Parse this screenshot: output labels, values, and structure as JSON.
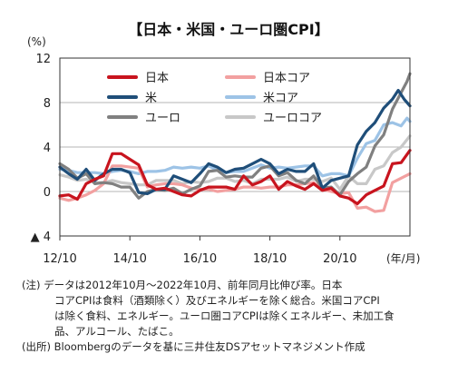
{
  "chart_data": {
    "type": "line",
    "title": "【日本・米国・ユーロ圏CPI】",
    "y_unit": "(%)",
    "x_unit": "(年/月)",
    "ylim": [
      -4,
      12
    ],
    "y_ticks": [
      12,
      8,
      4,
      0,
      -4
    ],
    "y_tick_labels": [
      "12",
      "8",
      "4",
      "0",
      "▲ 4"
    ],
    "x_ticks": [
      "2012-10",
      "2014-10",
      "2016-10",
      "2018-10",
      "2020-10"
    ],
    "x_tick_labels": [
      "12/10",
      "14/10",
      "16/10",
      "18/10",
      "20/10"
    ],
    "x_range": [
      "2012-10",
      "2022-10"
    ],
    "grid": "horizontal",
    "legend": "inside-top",
    "series": [
      {
        "name": "日本",
        "color": "#c8141e",
        "points": [
          [
            "2012-10",
            -0.4
          ],
          [
            "2013-01",
            -0.3
          ],
          [
            "2013-04",
            -0.7
          ],
          [
            "2013-07",
            0.7
          ],
          [
            "2013-10",
            1.1
          ],
          [
            "2014-01",
            1.4
          ],
          [
            "2014-04",
            3.4
          ],
          [
            "2014-07",
            3.4
          ],
          [
            "2014-10",
            2.9
          ],
          [
            "2015-01",
            2.4
          ],
          [
            "2015-04",
            0.6
          ],
          [
            "2015-07",
            0.2
          ],
          [
            "2015-10",
            0.3
          ],
          [
            "2016-01",
            0.0
          ],
          [
            "2016-04",
            -0.3
          ],
          [
            "2016-07",
            -0.4
          ],
          [
            "2016-10",
            0.1
          ],
          [
            "2017-01",
            0.4
          ],
          [
            "2017-04",
            0.4
          ],
          [
            "2017-07",
            0.4
          ],
          [
            "2017-10",
            0.2
          ],
          [
            "2018-01",
            1.4
          ],
          [
            "2018-04",
            0.6
          ],
          [
            "2018-07",
            0.9
          ],
          [
            "2018-10",
            1.4
          ],
          [
            "2019-01",
            0.2
          ],
          [
            "2019-04",
            0.9
          ],
          [
            "2019-07",
            0.5
          ],
          [
            "2019-10",
            0.2
          ],
          [
            "2020-01",
            0.7
          ],
          [
            "2020-04",
            0.1
          ],
          [
            "2020-07",
            0.3
          ],
          [
            "2020-10",
            -0.4
          ],
          [
            "2021-01",
            -0.6
          ],
          [
            "2021-04",
            -1.1
          ],
          [
            "2021-07",
            -0.3
          ],
          [
            "2021-10",
            0.1
          ],
          [
            "2022-01",
            0.5
          ],
          [
            "2022-04",
            2.5
          ],
          [
            "2022-07",
            2.6
          ],
          [
            "2022-10",
            3.7
          ]
        ]
      },
      {
        "name": "日本コア",
        "color": "#f2a0a0",
        "points": [
          [
            "2012-10",
            -0.6
          ],
          [
            "2013-01",
            -0.8
          ],
          [
            "2013-04",
            -0.6
          ],
          [
            "2013-07",
            -0.3
          ],
          [
            "2013-10",
            0.1
          ],
          [
            "2014-01",
            0.7
          ],
          [
            "2014-04",
            2.3
          ],
          [
            "2014-07",
            2.3
          ],
          [
            "2014-10",
            2.2
          ],
          [
            "2015-01",
            2.1
          ],
          [
            "2015-04",
            0.4
          ],
          [
            "2015-07",
            0.6
          ],
          [
            "2015-10",
            0.7
          ],
          [
            "2016-01",
            0.7
          ],
          [
            "2016-04",
            0.6
          ],
          [
            "2016-07",
            0.3
          ],
          [
            "2016-10",
            0.2
          ],
          [
            "2017-01",
            0.2
          ],
          [
            "2017-04",
            0.0
          ],
          [
            "2017-07",
            0.1
          ],
          [
            "2017-10",
            0.2
          ],
          [
            "2018-01",
            0.4
          ],
          [
            "2018-04",
            0.4
          ],
          [
            "2018-07",
            0.3
          ],
          [
            "2018-10",
            0.4
          ],
          [
            "2019-01",
            0.4
          ],
          [
            "2019-04",
            0.6
          ],
          [
            "2019-07",
            0.6
          ],
          [
            "2019-10",
            0.7
          ],
          [
            "2020-01",
            0.8
          ],
          [
            "2020-04",
            0.2
          ],
          [
            "2020-07",
            0.0
          ],
          [
            "2020-10",
            -0.2
          ],
          [
            "2021-01",
            -0.1
          ],
          [
            "2021-04",
            -1.5
          ],
          [
            "2021-07",
            -1.4
          ],
          [
            "2021-10",
            -1.8
          ],
          [
            "2022-01",
            -1.7
          ],
          [
            "2022-04",
            0.8
          ],
          [
            "2022-07",
            1.2
          ],
          [
            "2022-10",
            1.6
          ]
        ]
      },
      {
        "name": "米",
        "color": "#1f4e79",
        "points": [
          [
            "2012-10",
            2.2
          ],
          [
            "2013-01",
            1.6
          ],
          [
            "2013-04",
            1.1
          ],
          [
            "2013-07",
            2.0
          ],
          [
            "2013-10",
            1.0
          ],
          [
            "2014-01",
            1.6
          ],
          [
            "2014-04",
            2.0
          ],
          [
            "2014-07",
            2.0
          ],
          [
            "2014-10",
            1.7
          ],
          [
            "2015-01",
            -0.1
          ],
          [
            "2015-04",
            -0.2
          ],
          [
            "2015-07",
            0.2
          ],
          [
            "2015-10",
            0.2
          ],
          [
            "2016-01",
            1.4
          ],
          [
            "2016-04",
            1.1
          ],
          [
            "2016-07",
            0.8
          ],
          [
            "2016-10",
            1.6
          ],
          [
            "2017-01",
            2.5
          ],
          [
            "2017-04",
            2.2
          ],
          [
            "2017-07",
            1.7
          ],
          [
            "2017-10",
            2.0
          ],
          [
            "2018-01",
            2.1
          ],
          [
            "2018-04",
            2.5
          ],
          [
            "2018-07",
            2.9
          ],
          [
            "2018-10",
            2.5
          ],
          [
            "2019-01",
            1.6
          ],
          [
            "2019-04",
            2.0
          ],
          [
            "2019-07",
            1.8
          ],
          [
            "2019-10",
            1.8
          ],
          [
            "2020-01",
            2.5
          ],
          [
            "2020-04",
            0.3
          ],
          [
            "2020-07",
            1.0
          ],
          [
            "2020-10",
            1.2
          ],
          [
            "2021-01",
            1.4
          ],
          [
            "2021-04",
            4.2
          ],
          [
            "2021-07",
            5.4
          ],
          [
            "2021-10",
            6.2
          ],
          [
            "2022-01",
            7.5
          ],
          [
            "2022-04",
            8.3
          ],
          [
            "2022-06",
            9.1
          ],
          [
            "2022-08",
            8.3
          ],
          [
            "2022-10",
            7.7
          ]
        ]
      },
      {
        "name": "米コア",
        "color": "#9dc3e6",
        "points": [
          [
            "2012-10",
            2.0
          ],
          [
            "2013-01",
            1.9
          ],
          [
            "2013-04",
            1.7
          ],
          [
            "2013-07",
            1.7
          ],
          [
            "2013-10",
            1.7
          ],
          [
            "2014-01",
            1.6
          ],
          [
            "2014-04",
            1.8
          ],
          [
            "2014-07",
            1.9
          ],
          [
            "2014-10",
            1.8
          ],
          [
            "2015-01",
            1.6
          ],
          [
            "2015-04",
            1.8
          ],
          [
            "2015-07",
            1.8
          ],
          [
            "2015-10",
            1.9
          ],
          [
            "2016-01",
            2.2
          ],
          [
            "2016-04",
            2.1
          ],
          [
            "2016-07",
            2.2
          ],
          [
            "2016-10",
            2.1
          ],
          [
            "2017-01",
            2.3
          ],
          [
            "2017-04",
            1.9
          ],
          [
            "2017-07",
            1.7
          ],
          [
            "2017-10",
            1.8
          ],
          [
            "2018-01",
            1.8
          ],
          [
            "2018-04",
            2.1
          ],
          [
            "2018-07",
            2.4
          ],
          [
            "2018-10",
            2.1
          ],
          [
            "2019-01",
            2.2
          ],
          [
            "2019-04",
            2.1
          ],
          [
            "2019-07",
            2.2
          ],
          [
            "2019-10",
            2.3
          ],
          [
            "2020-01",
            2.3
          ],
          [
            "2020-04",
            1.4
          ],
          [
            "2020-07",
            1.6
          ],
          [
            "2020-10",
            1.6
          ],
          [
            "2021-01",
            1.4
          ],
          [
            "2021-04",
            3.0
          ],
          [
            "2021-07",
            4.3
          ],
          [
            "2021-10",
            4.6
          ],
          [
            "2022-01",
            6.0
          ],
          [
            "2022-04",
            6.2
          ],
          [
            "2022-07",
            5.9
          ],
          [
            "2022-09",
            6.6
          ],
          [
            "2022-10",
            6.3
          ]
        ]
      },
      {
        "name": "ユーロ",
        "color": "#808080",
        "points": [
          [
            "2012-10",
            2.5
          ],
          [
            "2013-01",
            2.0
          ],
          [
            "2013-04",
            1.2
          ],
          [
            "2013-07",
            1.6
          ],
          [
            "2013-10",
            0.7
          ],
          [
            "2014-01",
            0.8
          ],
          [
            "2014-04",
            0.7
          ],
          [
            "2014-07",
            0.4
          ],
          [
            "2014-10",
            0.4
          ],
          [
            "2015-01",
            -0.6
          ],
          [
            "2015-04",
            0.0
          ],
          [
            "2015-07",
            0.2
          ],
          [
            "2015-10",
            0.1
          ],
          [
            "2016-01",
            0.3
          ],
          [
            "2016-04",
            -0.2
          ],
          [
            "2016-07",
            0.2
          ],
          [
            "2016-10",
            0.5
          ],
          [
            "2017-01",
            1.8
          ],
          [
            "2017-04",
            1.9
          ],
          [
            "2017-07",
            1.3
          ],
          [
            "2017-10",
            1.4
          ],
          [
            "2018-01",
            1.3
          ],
          [
            "2018-04",
            1.3
          ],
          [
            "2018-07",
            2.1
          ],
          [
            "2018-10",
            2.3
          ],
          [
            "2019-01",
            1.4
          ],
          [
            "2019-04",
            1.7
          ],
          [
            "2019-07",
            1.0
          ],
          [
            "2019-10",
            0.7
          ],
          [
            "2020-01",
            1.4
          ],
          [
            "2020-04",
            0.3
          ],
          [
            "2020-07",
            0.4
          ],
          [
            "2020-10",
            -0.3
          ],
          [
            "2021-01",
            0.9
          ],
          [
            "2021-04",
            1.6
          ],
          [
            "2021-07",
            2.2
          ],
          [
            "2021-10",
            4.1
          ],
          [
            "2022-01",
            5.1
          ],
          [
            "2022-04",
            7.4
          ],
          [
            "2022-07",
            8.9
          ],
          [
            "2022-09",
            9.9
          ],
          [
            "2022-10",
            10.6
          ]
        ]
      },
      {
        "name": "ユーロコア",
        "color": "#c8c8c8",
        "points": [
          [
            "2012-10",
            1.5
          ],
          [
            "2013-01",
            1.3
          ],
          [
            "2013-04",
            1.0
          ],
          [
            "2013-07",
            1.1
          ],
          [
            "2013-10",
            0.8
          ],
          [
            "2014-01",
            0.8
          ],
          [
            "2014-04",
            1.0
          ],
          [
            "2014-07",
            0.8
          ],
          [
            "2014-10",
            0.7
          ],
          [
            "2015-01",
            0.6
          ],
          [
            "2015-04",
            0.6
          ],
          [
            "2015-07",
            1.0
          ],
          [
            "2015-10",
            1.0
          ],
          [
            "2016-01",
            1.0
          ],
          [
            "2016-04",
            0.7
          ],
          [
            "2016-07",
            0.9
          ],
          [
            "2016-10",
            0.8
          ],
          [
            "2017-01",
            0.9
          ],
          [
            "2017-04",
            1.2
          ],
          [
            "2017-07",
            1.2
          ],
          [
            "2017-10",
            0.9
          ],
          [
            "2018-01",
            1.0
          ],
          [
            "2018-04",
            0.7
          ],
          [
            "2018-07",
            1.1
          ],
          [
            "2018-10",
            1.1
          ],
          [
            "2019-01",
            1.1
          ],
          [
            "2019-04",
            1.3
          ],
          [
            "2019-07",
            0.9
          ],
          [
            "2019-10",
            1.1
          ],
          [
            "2020-01",
            1.1
          ],
          [
            "2020-04",
            0.9
          ],
          [
            "2020-07",
            1.2
          ],
          [
            "2020-10",
            0.2
          ],
          [
            "2021-01",
            1.4
          ],
          [
            "2021-04",
            0.7
          ],
          [
            "2021-07",
            0.7
          ],
          [
            "2021-10",
            2.0
          ],
          [
            "2022-01",
            2.3
          ],
          [
            "2022-04",
            3.5
          ],
          [
            "2022-07",
            4.0
          ],
          [
            "2022-10",
            5.0
          ]
        ]
      }
    ]
  },
  "notes": {
    "line1": "(注) データは2012年10月～2022年10月、前年同月比伸び率。日本",
    "line2": "コアCPIは食料（酒類除く）及びエネルギーを除く総合。米国コアCPI",
    "line3": "は除く食料、エネルギー。ユーロ圏コアCPIは除くエネルギー、未加工食",
    "line4": "品、アルコール、たばこ。",
    "line5": "(出所) Bloombergのデータを基に三井住友DSアセットマネジメント作成"
  }
}
